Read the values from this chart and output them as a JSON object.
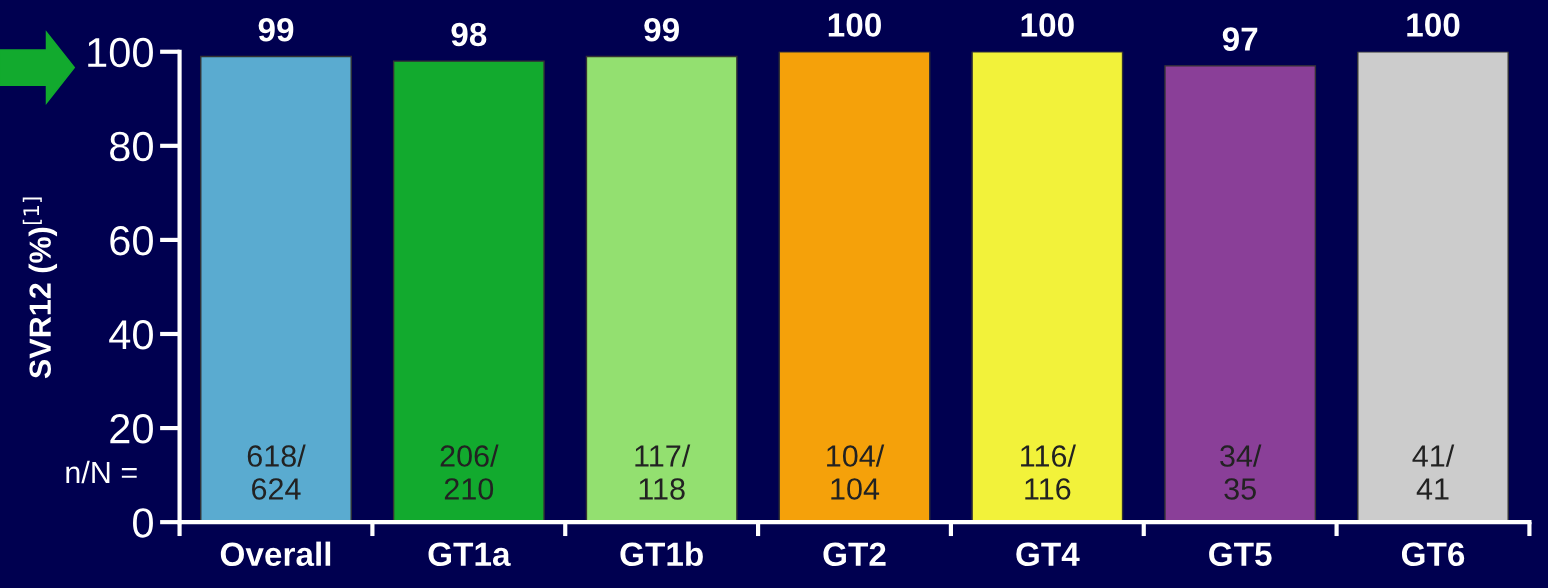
{
  "chart_data": {
    "type": "bar",
    "ylabel": "SVR12 (%)$^{[1]}$",
    "categories": [
      "Overall",
      "GT1a",
      "GT1b",
      "GT2",
      "GT4",
      "GT5",
      "GT6"
    ],
    "values": [
      99,
      98,
      99,
      100,
      100,
      97,
      100
    ],
    "colors": [
      "#5aabd0",
      "#12aa2e",
      "#93e070",
      "#f5a10a",
      "#f2f23a",
      "#8a3f98",
      "#cccccc"
    ],
    "data_labels": true,
    "ylim": [
      0,
      100
    ],
    "yticks": [
      0,
      20,
      40,
      60,
      80,
      100
    ],
    "grid": false,
    "annotations": [
      "n/N =",
      "618/\n624",
      "206/\n210",
      "117/\n118",
      "104/\n104",
      "116/\n116",
      "34/\n35",
      "41/\n41"
    ]
  }
}
